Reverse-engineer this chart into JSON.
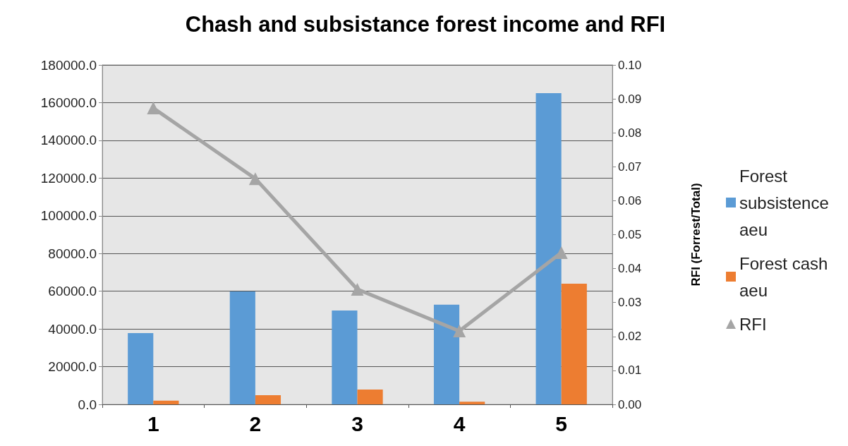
{
  "chart_data": {
    "type": "bar",
    "title": "Chash and subsistance forest income and RFI",
    "y2label": "RFI (Forrest/Total)",
    "categories": [
      "1",
      "2",
      "3",
      "4",
      "5"
    ],
    "series": [
      {
        "name": "Forest subsistence aeu",
        "color": "#5b9bd5",
        "values": [
          37800,
          59900,
          49800,
          52900,
          165000
        ]
      },
      {
        "name": "Forest cash aeu",
        "color": "#ed7d31",
        "values": [
          2000,
          4900,
          7900,
          1400,
          64000
        ]
      },
      {
        "name": "RFI",
        "type": "line",
        "axis": "y2",
        "color": "#a5a5a5",
        "marker": "triangle",
        "values": [
          0.0873,
          0.0665,
          0.0339,
          0.0216,
          0.0447
        ]
      }
    ],
    "ylim": [
      0,
      180000
    ],
    "yticks": [
      {
        "value": 0,
        "label": "0.0"
      },
      {
        "value": 20000,
        "label": "20000.0"
      },
      {
        "value": 40000,
        "label": "40000.0"
      },
      {
        "value": 60000,
        "label": "60000.0"
      },
      {
        "value": 80000,
        "label": "80000.0"
      },
      {
        "value": 100000,
        "label": "100000.0"
      },
      {
        "value": 120000,
        "label": "120000.0"
      },
      {
        "value": 140000,
        "label": "140000.0"
      },
      {
        "value": 160000,
        "label": "160000.0"
      },
      {
        "value": 180000,
        "label": "180000.0"
      }
    ],
    "y2lim": [
      0,
      0.1
    ],
    "y2ticks": [
      {
        "value": 0,
        "label": "0.00"
      },
      {
        "value": 0.01,
        "label": "0.01"
      },
      {
        "value": 0.02,
        "label": "0.02"
      },
      {
        "value": 0.03,
        "label": "0.03"
      },
      {
        "value": 0.04,
        "label": "0.04"
      },
      {
        "value": 0.05,
        "label": "0.05"
      },
      {
        "value": 0.06,
        "label": "0.06"
      },
      {
        "value": 0.07,
        "label": "0.07"
      },
      {
        "value": 0.08,
        "label": "0.08"
      },
      {
        "value": 0.09,
        "label": "0.09"
      },
      {
        "value": 0.1,
        "label": "0.10"
      }
    ],
    "grid": "y",
    "legend": "right"
  }
}
